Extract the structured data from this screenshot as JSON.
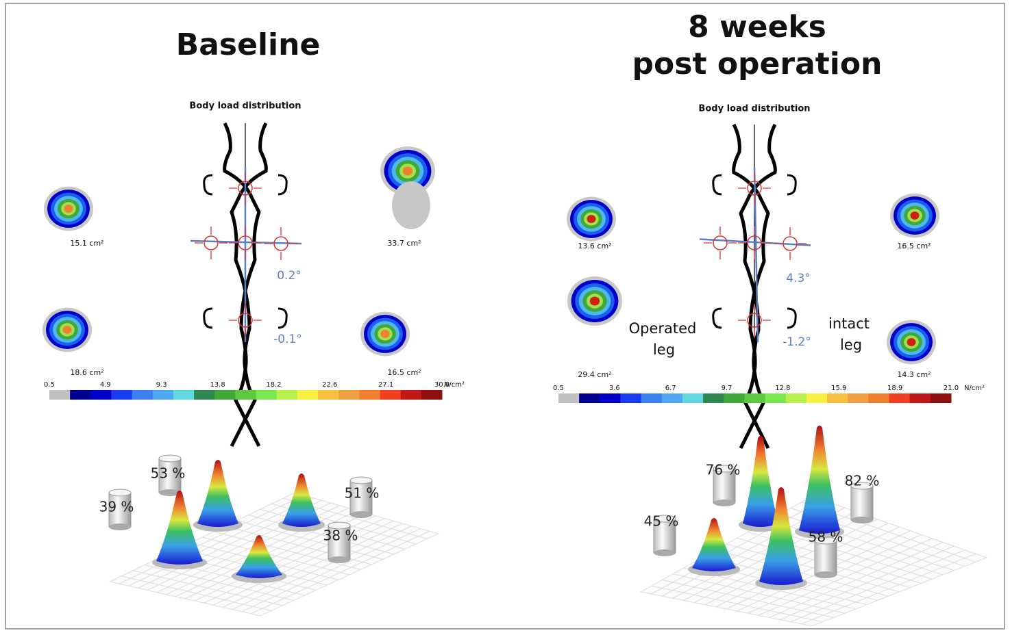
{
  "panels": [
    {
      "title_lines": [
        "Baseline"
      ],
      "subtitle": "Body load distribution",
      "paw_areas": [
        "15.1 cm²",
        "33.7 cm²",
        "18.6 cm²",
        "16.5 cm²"
      ],
      "angles": [
        "0.2°",
        "-0.1°"
      ],
      "colorbar": {
        "ticks": [
          "0.5",
          "4.9",
          "9.3",
          "13.8",
          "18.2",
          "22.6",
          "27.1",
          "30.0"
        ],
        "unit": "N/cm²"
      },
      "load_percentages": [
        "39 %",
        "53 %",
        "51 %",
        "38 %"
      ]
    },
    {
      "title_lines": [
        "8 weeks",
        "post operation"
      ],
      "subtitle": "Body load distribution",
      "paw_areas": [
        "13.6 cm²",
        "16.5 cm²",
        "29.4 cm²",
        "14.3 cm²"
      ],
      "angles": [
        "4.3°",
        "-1.2°"
      ],
      "colorbar": {
        "ticks": [
          "0.5",
          "3.6",
          "6.7",
          "9.7",
          "12.8",
          "15.9",
          "18.9",
          "21.0"
        ],
        "unit": "N/cm²"
      },
      "load_percentages": [
        "45 %",
        "76 %",
        "82 %",
        "58 %"
      ],
      "leg_labels": {
        "operated": [
          "Operated",
          "leg"
        ],
        "intact": [
          "intact",
          "leg"
        ]
      }
    }
  ]
}
